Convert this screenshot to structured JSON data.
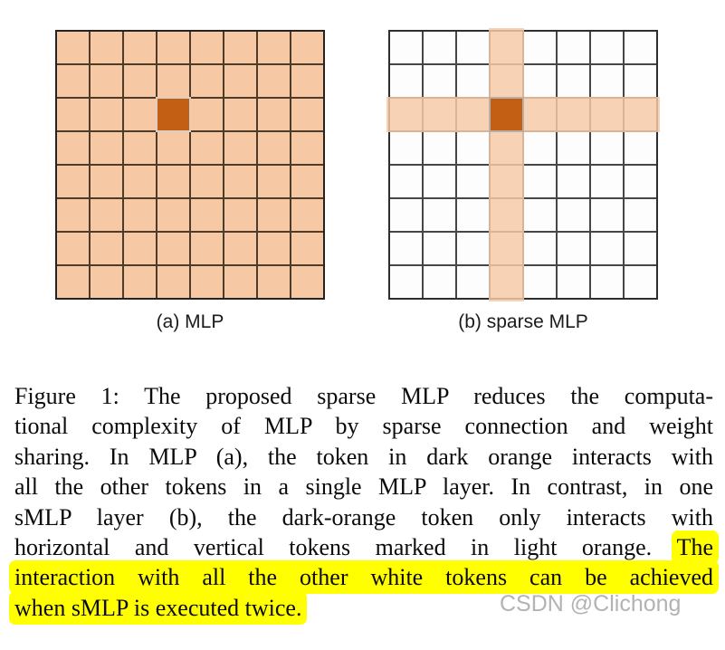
{
  "figure": {
    "panel_a": {
      "label": "(a) MLP"
    },
    "panel_b": {
      "label": "(b) sparse MLP"
    },
    "grid": {
      "rows": 8,
      "cols": 8,
      "token_row": 2,
      "token_col": 3
    }
  },
  "colors": {
    "light_orange": "#f6c8a4",
    "dark_orange": "#c25f15",
    "grid_line_a": "#4e3b2a",
    "grid_border_a": "#242424",
    "grid_line_b": "#464646",
    "grid_border_b": "#2e2e2e",
    "cell_white": "#fdfdfd",
    "highlight": "#ffff00",
    "watermark": "#b4b3b2"
  },
  "caption": {
    "lines": [
      {
        "text": "Figure 1: The proposed sparse MLP reduces the computa-"
      },
      {
        "text": "tional complexity of MLP by sparse connection and weight"
      },
      {
        "text": "sharing. In MLP (a), the token in dark orange interacts with"
      },
      {
        "text": "all the other tokens in a single MLP layer. In contrast, in one"
      },
      {
        "text": "sMLP layer (b), the dark-orange token only interacts with"
      },
      {
        "text": "horizontal and vertical tokens marked in light orange. ",
        "mark": "The"
      },
      {
        "mark": "interaction with all the other white tokens can be achieved"
      },
      {
        "mark": "when sMLP is executed twice."
      }
    ]
  },
  "watermark": {
    "text": "CSDN @Clichong"
  }
}
